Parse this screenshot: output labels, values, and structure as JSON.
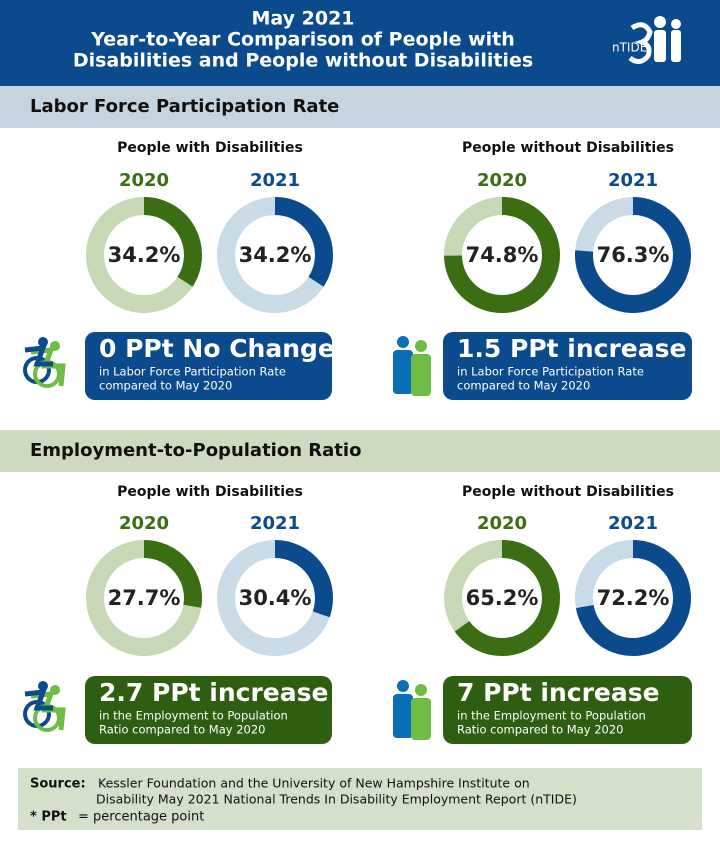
{
  "header": {
    "title_lines": [
      "May 2021",
      "Year-to-Year Comparison of People with",
      "Disabilities and People without Disabilities"
    ],
    "logo": "nTIDE"
  },
  "sections": [
    {
      "title": "Labor Force Participation Rate",
      "color": "#c6d4df",
      "groups": [
        {
          "label": "People with Disabilities",
          "callout": {
            "headline": "0 PPt No Change",
            "lines": [
              "in Labor Force Participation Rate",
              "compared to May 2020"
            ],
            "color": "#0b4a8c"
          }
        },
        {
          "label": "People without Disabilities",
          "callout": {
            "headline": "1.5 PPt increase",
            "lines": [
              "in Labor Force Participation Rate",
              "compared to May 2020"
            ],
            "color": "#0b4a8c"
          }
        }
      ]
    },
    {
      "title": "Employment-to-Population Ratio",
      "color": "#cddabf",
      "groups": [
        {
          "label": "People with Disabilities",
          "callout": {
            "headline": "2.7 PPt increase",
            "lines": [
              "in the Employment to Population",
              "Ratio compared to May 2020"
            ],
            "color": "#2e5e10"
          }
        },
        {
          "label": "People without Disabilities",
          "callout": {
            "headline": "7 PPt increase",
            "lines": [
              "in the Employment to Population",
              "Ratio compared to May 2020"
            ],
            "color": "#2e5e10"
          }
        }
      ]
    }
  ],
  "chart_data": [
    {
      "type": "donut",
      "title": "2020",
      "values": [
        34.2
      ],
      "value_labels": [
        "34.2%"
      ],
      "color": "#3b6e12",
      "track_color": "#c7d8b6"
    },
    {
      "type": "donut",
      "title": "2021",
      "values": [
        34.2
      ],
      "value_labels": [
        "34.2%"
      ],
      "color": "#0b4a8c",
      "track_color": "#c9dbe7"
    },
    {
      "type": "donut",
      "title": "2020",
      "values": [
        74.8
      ],
      "value_labels": [
        "74.8%"
      ],
      "color": "#3b6e12",
      "track_color": "#c7d8b6"
    },
    {
      "type": "donut",
      "title": "2021",
      "values": [
        76.3
      ],
      "value_labels": [
        "76.3%"
      ],
      "color": "#0b4a8c",
      "track_color": "#c9dbe7"
    },
    {
      "type": "donut",
      "title": "2020",
      "values": [
        27.7
      ],
      "value_labels": [
        "27.7%"
      ],
      "color": "#3b6e12",
      "track_color": "#c7d8b6"
    },
    {
      "type": "donut",
      "title": "2021",
      "values": [
        30.4
      ],
      "value_labels": [
        "30.4%"
      ],
      "color": "#0b4a8c",
      "track_color": "#c9dbe7"
    },
    {
      "type": "donut",
      "title": "2020",
      "values": [
        65.2
      ],
      "value_labels": [
        "65.2%"
      ],
      "color": "#3b6e12",
      "track_color": "#c7d8b6"
    },
    {
      "type": "donut",
      "title": "2021",
      "values": [
        72.2
      ],
      "value_labels": [
        "72.2%"
      ],
      "color": "#0b4a8c",
      "track_color": "#c9dbe7"
    }
  ],
  "source": {
    "label": "Source:",
    "lines": [
      "Kessler Foundation and the University of New Hampshire Institute on",
      "Disability May 2021 National Trends In Disability Employment Report (nTIDE)"
    ],
    "note_key": "* PPt",
    "note_text": "= percentage point"
  }
}
